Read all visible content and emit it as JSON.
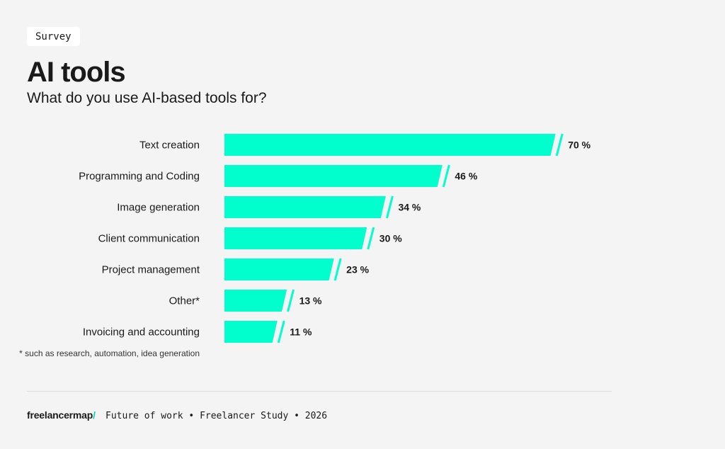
{
  "tag": "Survey",
  "title": "AI tools",
  "subtitle": "What do you use AI-based tools for?",
  "footnote": "* such as research, automation, idea generation",
  "footer": {
    "brand": "freelancermap",
    "brand_mark": "/",
    "text": "Future of work • Freelancer Study • 2026"
  },
  "colors": {
    "bar": "#00ffcc",
    "background": "#f4f4f4",
    "text": "#1a1a1a"
  },
  "chart_data": {
    "type": "bar",
    "orientation": "horizontal",
    "categories": [
      "Text creation",
      "Programming and Coding",
      "Image generation",
      "Client communication",
      "Project management",
      "Other*",
      "Invoicing and accounting"
    ],
    "values": [
      70,
      46,
      34,
      30,
      23,
      13,
      11
    ],
    "value_labels": [
      "70 %",
      "46 %",
      "34 %",
      "30 %",
      "23  %",
      "13 %",
      "11 %"
    ],
    "unit": "%",
    "grid": false,
    "legend": "none"
  }
}
